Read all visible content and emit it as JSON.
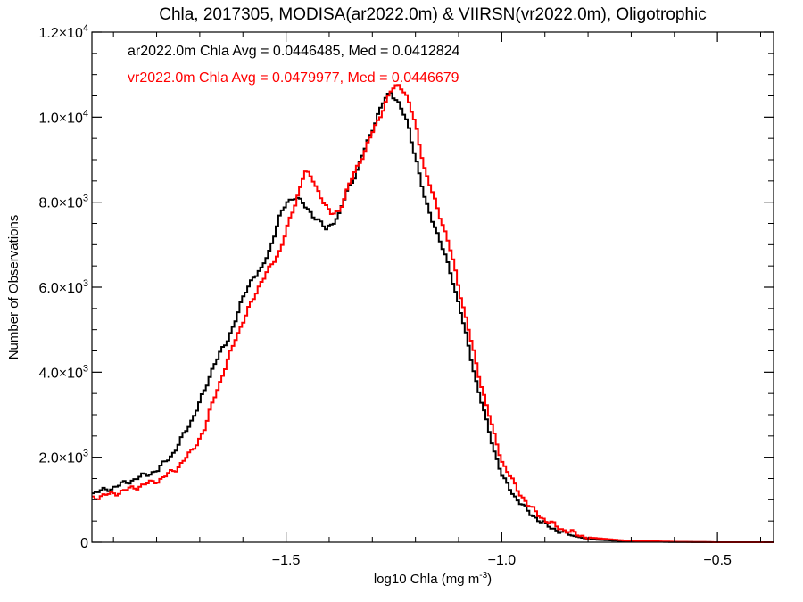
{
  "chart_data": {
    "type": "line",
    "title": "Chla, 2017305, MODISA(ar2022.0m) & VIIRSN(vr2022.0m), Oligotrophic",
    "xlabel_main": "log10 Chla (mg m",
    "xlabel_sup": "-3",
    "xlabel_end": ")",
    "ylabel": "Number of Observations",
    "xlim": [
      -1.95,
      -0.37
    ],
    "ylim": [
      0,
      12000
    ],
    "x_ticks": [
      {
        "value": -1.5,
        "label": "−1.5"
      },
      {
        "value": -1.0,
        "label": "−1.0"
      },
      {
        "value": -0.5,
        "label": "−0.5"
      }
    ],
    "y_ticks": [
      {
        "value": 0,
        "mant": "0",
        "exp": ""
      },
      {
        "value": 2000,
        "mant": "2.0×10",
        "exp": "3"
      },
      {
        "value": 4000,
        "mant": "4.0×10",
        "exp": "3"
      },
      {
        "value": 6000,
        "mant": "6.0×10",
        "exp": "3"
      },
      {
        "value": 8000,
        "mant": "8.0×10",
        "exp": "3"
      },
      {
        "value": 10000,
        "mant": "1.0×10",
        "exp": "4"
      },
      {
        "value": 12000,
        "mant": "1.2×10",
        "exp": "4"
      }
    ],
    "annotations": [
      "ar2022.0m Chla Avg = 0.0446485, Med = 0.0412824",
      "vr2022.0m Chla Avg = 0.0479977, Med = 0.0446679"
    ],
    "series": [
      {
        "color": "#000000",
        "points": [
          [
            -1.95,
            1150
          ],
          [
            -1.9,
            1300
          ],
          [
            -1.85,
            1500
          ],
          [
            -1.8,
            1700
          ],
          [
            -1.76,
            2150
          ],
          [
            -1.72,
            2900
          ],
          [
            -1.69,
            3600
          ],
          [
            -1.67,
            4200
          ],
          [
            -1.64,
            4700
          ],
          [
            -1.62,
            5250
          ],
          [
            -1.6,
            5800
          ],
          [
            -1.58,
            6250
          ],
          [
            -1.56,
            6400
          ],
          [
            -1.54,
            6900
          ],
          [
            -1.52,
            7600
          ],
          [
            -1.5,
            8000
          ],
          [
            -1.48,
            8150
          ],
          [
            -1.46,
            7900
          ],
          [
            -1.43,
            7600
          ],
          [
            -1.41,
            7350
          ],
          [
            -1.38,
            7700
          ],
          [
            -1.36,
            8300
          ],
          [
            -1.34,
            8700
          ],
          [
            -1.32,
            9250
          ],
          [
            -1.3,
            9800
          ],
          [
            -1.28,
            10300
          ],
          [
            -1.26,
            10600
          ],
          [
            -1.24,
            10300
          ],
          [
            -1.22,
            9800
          ],
          [
            -1.2,
            8950
          ],
          [
            -1.18,
            8000
          ],
          [
            -1.16,
            7500
          ],
          [
            -1.14,
            6900
          ],
          [
            -1.12,
            6300
          ],
          [
            -1.1,
            5500
          ],
          [
            -1.08,
            4600
          ],
          [
            -1.06,
            3700
          ],
          [
            -1.04,
            2900
          ],
          [
            -1.02,
            2150
          ],
          [
            -1.0,
            1500
          ],
          [
            -0.97,
            1050
          ],
          [
            -0.94,
            700
          ],
          [
            -0.9,
            400
          ],
          [
            -0.85,
            180
          ],
          [
            -0.8,
            70
          ],
          [
            -0.72,
            25
          ],
          [
            -0.6,
            5
          ],
          [
            -0.5,
            0
          ],
          [
            -0.37,
            0
          ]
        ]
      },
      {
        "color": "#ff0000",
        "points": [
          [
            -1.95,
            1050
          ],
          [
            -1.9,
            1150
          ],
          [
            -1.85,
            1300
          ],
          [
            -1.8,
            1450
          ],
          [
            -1.76,
            1700
          ],
          [
            -1.72,
            2150
          ],
          [
            -1.69,
            2700
          ],
          [
            -1.67,
            3400
          ],
          [
            -1.64,
            4200
          ],
          [
            -1.62,
            4800
          ],
          [
            -1.6,
            5250
          ],
          [
            -1.58,
            5700
          ],
          [
            -1.56,
            6150
          ],
          [
            -1.54,
            6450
          ],
          [
            -1.52,
            6800
          ],
          [
            -1.5,
            7400
          ],
          [
            -1.48,
            8000
          ],
          [
            -1.46,
            8750
          ],
          [
            -1.44,
            8500
          ],
          [
            -1.42,
            8100
          ],
          [
            -1.4,
            7700
          ],
          [
            -1.38,
            7800
          ],
          [
            -1.36,
            8300
          ],
          [
            -1.34,
            8800
          ],
          [
            -1.32,
            9200
          ],
          [
            -1.3,
            9700
          ],
          [
            -1.28,
            10150
          ],
          [
            -1.26,
            10600
          ],
          [
            -1.24,
            10800
          ],
          [
            -1.22,
            10400
          ],
          [
            -1.2,
            9700
          ],
          [
            -1.18,
            8700
          ],
          [
            -1.16,
            8100
          ],
          [
            -1.14,
            7500
          ],
          [
            -1.12,
            6800
          ],
          [
            -1.1,
            5900
          ],
          [
            -1.08,
            5000
          ],
          [
            -1.06,
            4100
          ],
          [
            -1.04,
            3300
          ],
          [
            -1.02,
            2500
          ],
          [
            -1.0,
            1850
          ],
          [
            -0.97,
            1300
          ],
          [
            -0.94,
            850
          ],
          [
            -0.9,
            500
          ],
          [
            -0.85,
            250
          ],
          [
            -0.8,
            110
          ],
          [
            -0.72,
            40
          ],
          [
            -0.6,
            10
          ],
          [
            -0.5,
            0
          ],
          [
            -0.37,
            0
          ]
        ]
      }
    ]
  }
}
